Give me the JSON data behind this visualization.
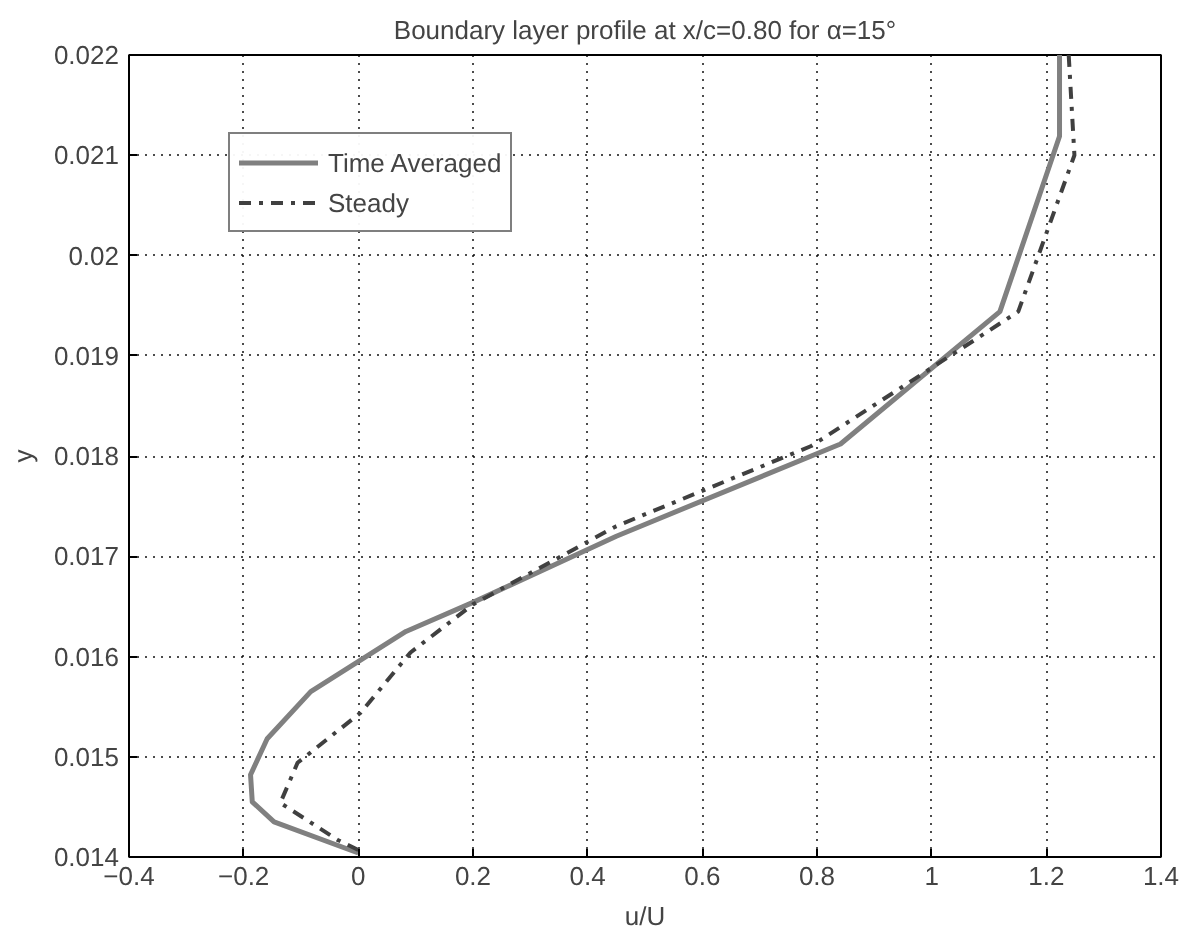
{
  "chart_data": {
    "type": "line",
    "title": "Boundary layer profile at x/c=0.80 for α=15°",
    "xlabel": "u/U",
    "ylabel": "y",
    "xlim": [
      -0.4,
      1.4
    ],
    "xticks": [
      {
        "value": -0.4,
        "label": "−0.4"
      },
      {
        "value": -0.2,
        "label": "−0.2"
      },
      0,
      0.2,
      0.4,
      0.6,
      0.8,
      1,
      1.2,
      1.4
    ],
    "ylim": [
      0.014,
      0.022
    ],
    "yticks": [
      0.014,
      0.015,
      0.016,
      0.017,
      0.018,
      0.019,
      0.02,
      0.021,
      0.022
    ],
    "grid": true,
    "legend": "top left",
    "marker": "none",
    "series": [
      {
        "name": "Time Averaged",
        "color": "#808080",
        "line_style": "solid",
        "x": [
          1.223,
          1.223,
          1.119,
          0.841,
          0.45,
          0.2,
          0.083,
          -0.083,
          -0.159,
          -0.188,
          -0.185,
          -0.147,
          0
        ],
        "values": [
          0.022,
          0.02119,
          0.01944,
          0.01812,
          0.0172,
          0.01654,
          0.01625,
          0.01565,
          0.01518,
          0.01482,
          0.01455,
          0.01435,
          0.01404
        ]
      },
      {
        "name": "Steady",
        "color": "#404040",
        "line_style": "dashdot",
        "x": [
          1.239,
          1.249,
          1.151,
          0.79,
          0.45,
          0.2,
          0.091,
          0.004,
          -0.106,
          -0.136,
          -0.036,
          0
        ],
        "values": [
          0.022,
          0.021,
          0.01944,
          0.0181,
          0.0173,
          0.01652,
          0.01604,
          0.01544,
          0.01494,
          0.01454,
          0.01417,
          0.01407
        ]
      }
    ]
  }
}
